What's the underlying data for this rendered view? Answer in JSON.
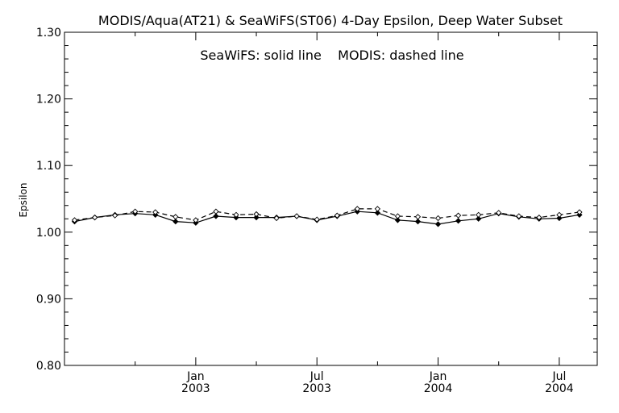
{
  "chart_data": {
    "type": "line",
    "title": "MODIS/Aqua(AT21) & SeaWiFS(ST06) 4-Day Epsilon, Deep Water Subset",
    "annotation": "SeaWiFS: solid line    MODIS: dashed line",
    "xlabel": "",
    "ylabel": "Epsilon",
    "ylim": [
      0.8,
      1.3
    ],
    "yticks": [
      "0.80",
      "0.90",
      "1.00",
      "1.10",
      "1.20",
      "1.30"
    ],
    "xticks": [
      {
        "month": "Jan",
        "year": "2003"
      },
      {
        "month": "Jul",
        "year": "2003"
      },
      {
        "month": "Jan",
        "year": "2004"
      },
      {
        "month": "Jul",
        "year": "2004"
      }
    ],
    "x": [
      "2002-07",
      "2002-08",
      "2002-09",
      "2002-10",
      "2002-11",
      "2002-12",
      "2003-01",
      "2003-02",
      "2003-03",
      "2003-04",
      "2003-05",
      "2003-06",
      "2003-07",
      "2003-08",
      "2003-09",
      "2003-10",
      "2003-11",
      "2003-12",
      "2004-01",
      "2004-02",
      "2004-03",
      "2004-04",
      "2004-05",
      "2004-06",
      "2004-07",
      "2004-08"
    ],
    "series": [
      {
        "name": "SeaWiFS",
        "line_style": "solid",
        "values": [
          1.016,
          1.022,
          1.026,
          1.028,
          1.026,
          1.016,
          1.014,
          1.024,
          1.022,
          1.022,
          1.022,
          1.024,
          1.018,
          1.024,
          1.031,
          1.029,
          1.018,
          1.016,
          1.012,
          1.017,
          1.02,
          1.028,
          1.023,
          1.02,
          1.021,
          1.026
        ]
      },
      {
        "name": "MODIS",
        "line_style": "dashed",
        "values": [
          1.018,
          1.022,
          1.025,
          1.031,
          1.03,
          1.023,
          1.018,
          1.031,
          1.026,
          1.027,
          1.021,
          1.024,
          1.019,
          1.025,
          1.035,
          1.035,
          1.024,
          1.023,
          1.021,
          1.025,
          1.026,
          1.029,
          1.024,
          1.022,
          1.026,
          1.03
        ]
      }
    ],
    "grid": false,
    "colors": {
      "axis": "#000000",
      "line": "#000000",
      "background": "#ffffff"
    }
  }
}
